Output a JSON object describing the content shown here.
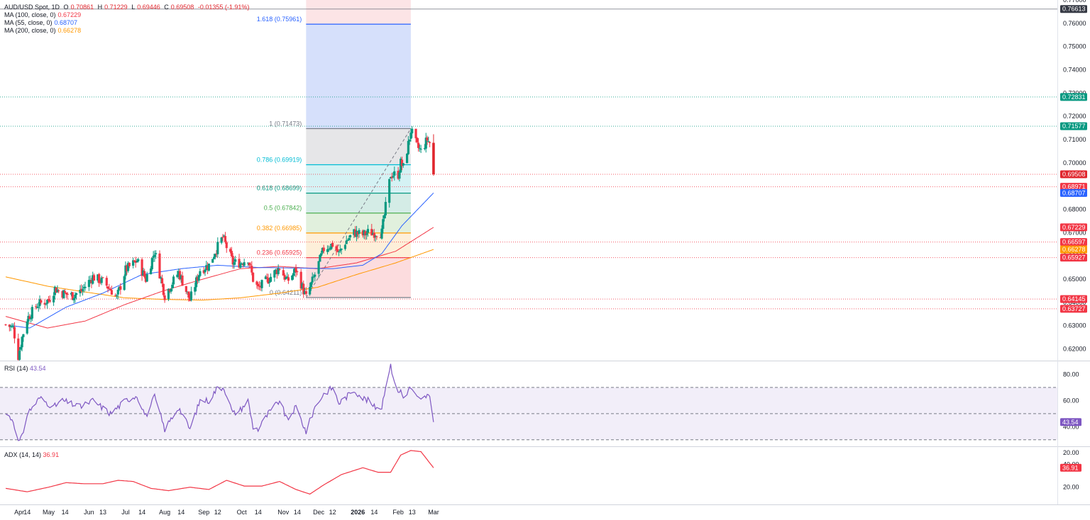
{
  "header": {
    "symbol": "AUD/USD Spot, 1D",
    "ohlc": [
      {
        "k": "O",
        "v": "0.70861"
      },
      {
        "k": "H",
        "v": "0.71229"
      },
      {
        "k": "L",
        "v": "0.69446"
      },
      {
        "k": "C",
        "v": "0.69508"
      }
    ],
    "change": "-0.01355 (-1.91%)",
    "change_color": "#e0262d"
  },
  "ma_legend": [
    {
      "label": "MA (100, close, 0)",
      "value": "0.67229",
      "color": "#f23645"
    },
    {
      "label": "MA (55, close, 0)",
      "value": "0.68707",
      "color": "#2962ff"
    },
    {
      "label": "MA (200, close, 0)",
      "value": "0.66278",
      "color": "#ff9800"
    }
  ],
  "colors": {
    "up": "#089981",
    "down": "#f23645",
    "down_last": "#e0262d",
    "ma55": "#2962ff",
    "ma100": "#f23645",
    "ma200": "#ff9800",
    "rsi": "#7e57c2",
    "adx": "#f23645"
  },
  "rsi": {
    "label": "RSI (14)",
    "value": "43.54"
  },
  "adx": {
    "label": "ADX (14, 14)",
    "value": "36.91"
  },
  "chart_data": {
    "type": "candlestick",
    "price_axis": {
      "range": [
        0.615,
        0.77
      ],
      "ticks": [
        "0.77000",
        "0.76000",
        "0.75000",
        "0.74000",
        "0.73000",
        "0.72000",
        "0.71000",
        "0.70000",
        "0.69000",
        "0.68000",
        "0.67000",
        "0.66000",
        "0.65000",
        "0.64000",
        "0.63000",
        "0.62000"
      ]
    },
    "time_axis": {
      "labels": [
        "Apr",
        "14",
        "May",
        "14",
        "Jun",
        "13",
        "Jul",
        "14",
        "Aug",
        "14",
        "Sep",
        "12",
        "Oct",
        "14",
        "Nov",
        "14",
        "Dec",
        "12",
        "2026",
        "14",
        "Feb",
        "13",
        "Mar"
      ],
      "bold": [
        "2026"
      ]
    },
    "price_anchors": [
      [
        "2025-03-28",
        0.6305
      ],
      [
        "2025-04-03",
        0.629
      ],
      [
        "2025-04-07",
        0.617
      ],
      [
        "2025-04-10",
        0.625
      ],
      [
        "2025-04-14",
        0.633
      ],
      [
        "2025-04-22",
        0.639
      ],
      [
        "2025-05-01",
        0.641
      ],
      [
        "2025-05-06",
        0.646
      ],
      [
        "2025-05-12",
        0.644
      ],
      [
        "2025-05-20",
        0.643
      ],
      [
        "2025-05-27",
        0.645
      ],
      [
        "2025-06-05",
        0.651
      ],
      [
        "2025-06-13",
        0.649
      ],
      [
        "2025-06-20",
        0.645
      ],
      [
        "2025-06-24",
        0.642
      ],
      [
        "2025-07-01",
        0.654
      ],
      [
        "2025-07-10",
        0.658
      ],
      [
        "2025-07-17",
        0.65
      ],
      [
        "2025-07-24",
        0.662
      ],
      [
        "2025-08-01",
        0.643
      ],
      [
        "2025-08-12",
        0.653
      ],
      [
        "2025-08-21",
        0.641
      ],
      [
        "2025-08-29",
        0.654
      ],
      [
        "2025-09-05",
        0.656
      ],
      [
        "2025-09-10",
        0.662
      ],
      [
        "2025-09-16",
        0.668
      ],
      [
        "2025-09-24",
        0.657
      ],
      [
        "2025-09-30",
        0.657
      ],
      [
        "2025-10-06",
        0.659
      ],
      [
        "2025-10-10",
        0.65
      ],
      [
        "2025-10-14",
        0.646
      ],
      [
        "2025-10-22",
        0.65
      ],
      [
        "2025-10-31",
        0.655
      ],
      [
        "2025-11-06",
        0.649
      ],
      [
        "2025-11-13",
        0.654
      ],
      [
        "2025-11-21",
        0.6421
      ],
      [
        "2025-11-28",
        0.652
      ],
      [
        "2025-12-05",
        0.663
      ],
      [
        "2025-12-12",
        0.665
      ],
      [
        "2025-12-17",
        0.661
      ],
      [
        "2025-12-22",
        0.666
      ],
      [
        "2025-12-29",
        0.67
      ],
      [
        "2026-01-05",
        0.669
      ],
      [
        "2026-01-09",
        0.67
      ],
      [
        "2026-01-14",
        0.67
      ],
      [
        "2026-01-20",
        0.67
      ],
      [
        "2026-01-23",
        0.681
      ],
      [
        "2026-01-27",
        0.695
      ],
      [
        "2026-02-02",
        0.695
      ],
      [
        "2026-02-04",
        0.7
      ],
      [
        "2026-02-06",
        0.698
      ],
      [
        "2026-02-10",
        0.708
      ],
      [
        "2026-02-12",
        0.714
      ],
      [
        "2026-02-17",
        0.707
      ],
      [
        "2026-02-20",
        0.705
      ],
      [
        "2026-02-25",
        0.71
      ],
      [
        "2026-02-27",
        0.7086
      ],
      [
        "2026-03-02",
        0.6951
      ]
    ],
    "last_candle": {
      "date": "2026-03-02",
      "open": 0.70861,
      "high": 0.71229,
      "low": 0.69446,
      "close": 0.69508
    },
    "ma55_anchors": [
      [
        "2025-04-02",
        0.63
      ],
      [
        "2025-04-16",
        0.629
      ],
      [
        "2025-05-15",
        0.638
      ],
      [
        "2025-06-13",
        0.644
      ],
      [
        "2025-07-14",
        0.652
      ],
      [
        "2025-08-14",
        0.6545
      ],
      [
        "2025-09-12",
        0.656
      ],
      [
        "2025-10-14",
        0.655
      ],
      [
        "2025-11-14",
        0.6548
      ],
      [
        "2025-12-12",
        0.6545
      ],
      [
        "2026-01-05",
        0.656
      ],
      [
        "2026-01-20",
        0.661
      ],
      [
        "2026-02-05",
        0.673
      ],
      [
        "2026-03-02",
        0.68707
      ]
    ],
    "ma100_anchors": [
      [
        "2025-03-28",
        0.634
      ],
      [
        "2025-04-30",
        0.629
      ],
      [
        "2025-05-30",
        0.632
      ],
      [
        "2025-06-30",
        0.639
      ],
      [
        "2025-07-31",
        0.645
      ],
      [
        "2025-08-31",
        0.65
      ],
      [
        "2025-09-30",
        0.6545
      ],
      [
        "2025-10-31",
        0.6555
      ],
      [
        "2025-11-30",
        0.6545
      ],
      [
        "2025-12-31",
        0.657
      ],
      [
        "2026-01-31",
        0.662
      ],
      [
        "2026-03-02",
        0.67229
      ]
    ],
    "ma200_anchors": [
      [
        "2025-03-28",
        0.651
      ],
      [
        "2025-04-30",
        0.647
      ],
      [
        "2025-05-30",
        0.6445
      ],
      [
        "2025-06-30",
        0.642
      ],
      [
        "2025-07-31",
        0.6413
      ],
      [
        "2025-08-31",
        0.641
      ],
      [
        "2025-09-30",
        0.642
      ],
      [
        "2025-10-31",
        0.644
      ],
      [
        "2025-11-30",
        0.6465
      ],
      [
        "2025-12-31",
        0.652
      ],
      [
        "2026-01-31",
        0.657
      ],
      [
        "2026-03-02",
        0.66278
      ]
    ],
    "fibonacci": {
      "start": "2025-11-21",
      "end": "2026-02-12",
      "low": 0.64211,
      "high": 0.71473,
      "levels": [
        {
          "ratio": "0",
          "label": "0 (0.64211)",
          "value": 0.64211,
          "color": "#787b86"
        },
        {
          "ratio": "0.236",
          "label": "0.236 (0.65925)",
          "value": 0.65925,
          "color": "#f23645"
        },
        {
          "ratio": "0.382",
          "label": "0.382 (0.66985)",
          "value": 0.66985,
          "color": "#ff9800"
        },
        {
          "ratio": "0.5",
          "label": "0.5 (0.67842)",
          "value": 0.67842,
          "color": "#4caf50"
        },
        {
          "ratio": "0.618",
          "label": "0.618 (0.68699)",
          "value": 0.68699,
          "color": "#089981"
        },
        {
          "ratio": "0.786",
          "label": "0.786 (0.69919)",
          "value": 0.69919,
          "color": "#00bcd4"
        },
        {
          "ratio": "1",
          "label": "1 (0.71473)",
          "value": 0.71473,
          "color": "#787b86"
        },
        {
          "ratio": "1.618",
          "label": "1.618 (0.75961)",
          "value": 0.75961,
          "color": "#2962ff"
        }
      ]
    },
    "horizontal_lines": [
      {
        "value": 0.76613,
        "color": "#787b86",
        "style": "solid"
      },
      {
        "value": 0.72831,
        "color": "#089981",
        "style": "dotted"
      },
      {
        "value": 0.71577,
        "color": "#089981",
        "style": "dotted"
      },
      {
        "value": 0.69508,
        "color": "#f23645",
        "style": "dotted"
      },
      {
        "value": 0.68971,
        "color": "#f23645",
        "style": "dotted"
      },
      {
        "value": 0.66597,
        "color": "#f23645",
        "style": "dotted"
      },
      {
        "value": 0.65927,
        "color": "#f23645",
        "style": "dotted"
      },
      {
        "value": 0.64145,
        "color": "#f23645",
        "style": "dotted"
      },
      {
        "value": 0.63727,
        "color": "#f23645",
        "style": "dotted"
      }
    ],
    "price_tags": [
      {
        "text": "0.76613",
        "value": 0.76613,
        "color": "#363a45"
      },
      {
        "text": "0.72831",
        "value": 0.72831,
        "color": "#089981"
      },
      {
        "text": "0.71577",
        "value": 0.71577,
        "color": "#089981"
      },
      {
        "text": "0.69508",
        "value": 0.69508,
        "color": "#e0262d"
      },
      {
        "text": "0.68971",
        "value": 0.68971,
        "color": "#f23645"
      },
      {
        "text": "0.68707",
        "value": 0.68707,
        "color": "#2962ff"
      },
      {
        "text": "0.67229",
        "value": 0.67229,
        "color": "#f23645"
      },
      {
        "text": "0.66597",
        "value": 0.66597,
        "color": "#f23645"
      },
      {
        "text": "0.66278",
        "value": 0.66278,
        "color": "#ff9800"
      },
      {
        "text": "0.65927",
        "value": 0.65927,
        "color": "#f23645"
      },
      {
        "text": "0.64145",
        "value": 0.64145,
        "color": "#f23645"
      },
      {
        "text": "0.63727",
        "value": 0.63727,
        "color": "#f23645"
      }
    ],
    "rsi_panel": {
      "range": [
        25,
        90
      ],
      "ticks": [
        "80.00",
        "60.00",
        "40.00",
        "20.00"
      ],
      "upper_band": 70,
      "middle": 50,
      "lower_band": 30,
      "last_tag": "43.54",
      "anchors": [
        [
          "2025-03-28",
          50
        ],
        [
          "2025-04-03",
          45
        ],
        [
          "2025-04-07",
          28
        ],
        [
          "2025-04-10",
          32
        ],
        [
          "2025-04-14",
          50
        ],
        [
          "2025-04-24",
          62
        ],
        [
          "2025-05-05",
          55
        ],
        [
          "2025-05-12",
          60
        ],
        [
          "2025-05-26",
          55
        ],
        [
          "2025-06-05",
          60
        ],
        [
          "2025-06-19",
          50
        ],
        [
          "2025-07-01",
          60
        ],
        [
          "2025-07-10",
          64
        ],
        [
          "2025-07-17",
          48
        ],
        [
          "2025-07-24",
          63
        ],
        [
          "2025-08-01",
          38
        ],
        [
          "2025-08-12",
          55
        ],
        [
          "2025-08-21",
          38
        ],
        [
          "2025-08-29",
          60
        ],
        [
          "2025-09-05",
          60
        ],
        [
          "2025-09-12",
          70
        ],
        [
          "2025-09-17",
          70
        ],
        [
          "2025-09-24",
          50
        ],
        [
          "2025-09-30",
          53
        ],
        [
          "2025-10-06",
          60
        ],
        [
          "2025-10-10",
          40
        ],
        [
          "2025-10-14",
          38
        ],
        [
          "2025-10-22",
          50
        ],
        [
          "2025-10-31",
          60
        ],
        [
          "2025-11-06",
          45
        ],
        [
          "2025-11-13",
          55
        ],
        [
          "2025-11-21",
          36
        ],
        [
          "2025-11-28",
          55
        ],
        [
          "2025-12-05",
          65
        ],
        [
          "2025-12-12",
          70
        ],
        [
          "2025-12-17",
          58
        ],
        [
          "2025-12-22",
          62
        ],
        [
          "2025-12-29",
          68
        ],
        [
          "2026-01-05",
          62
        ],
        [
          "2026-01-09",
          60
        ],
        [
          "2026-01-14",
          55
        ],
        [
          "2026-01-20",
          55
        ],
        [
          "2026-01-23",
          72
        ],
        [
          "2026-01-27",
          86
        ],
        [
          "2026-02-02",
          65
        ],
        [
          "2026-02-04",
          68
        ],
        [
          "2026-02-06",
          62
        ],
        [
          "2026-02-10",
          68
        ],
        [
          "2026-02-12",
          70
        ],
        [
          "2026-02-17",
          62
        ],
        [
          "2026-02-20",
          60
        ],
        [
          "2026-02-25",
          64
        ],
        [
          "2026-02-27",
          62
        ],
        [
          "2026-03-02",
          43.54
        ]
      ]
    },
    "adx_panel": {
      "range": [
        5,
        55
      ],
      "ticks": [
        "40.00",
        "20.00"
      ],
      "last_tag": "36.91",
      "anchors": [
        [
          "2025-03-28",
          19
        ],
        [
          "2025-04-14",
          16
        ],
        [
          "2025-05-01",
          20
        ],
        [
          "2025-05-15",
          24
        ],
        [
          "2025-05-29",
          23
        ],
        [
          "2025-06-13",
          23
        ],
        [
          "2025-06-25",
          26
        ],
        [
          "2025-07-07",
          25
        ],
        [
          "2025-07-21",
          19
        ],
        [
          "2025-08-04",
          17
        ],
        [
          "2025-08-21",
          20
        ],
        [
          "2025-09-05",
          18
        ],
        [
          "2025-09-19",
          26
        ],
        [
          "2025-10-03",
          21
        ],
        [
          "2025-10-17",
          21
        ],
        [
          "2025-10-31",
          25
        ],
        [
          "2025-11-13",
          18
        ],
        [
          "2025-11-24",
          14
        ],
        [
          "2025-12-05",
          22
        ],
        [
          "2025-12-19",
          31
        ],
        [
          "2026-01-05",
          37
        ],
        [
          "2026-01-17",
          33
        ],
        [
          "2026-01-27",
          33
        ],
        [
          "2026-02-04",
          48
        ],
        [
          "2026-02-12",
          52
        ],
        [
          "2026-02-20",
          51
        ],
        [
          "2026-03-02",
          36.91
        ]
      ]
    }
  }
}
